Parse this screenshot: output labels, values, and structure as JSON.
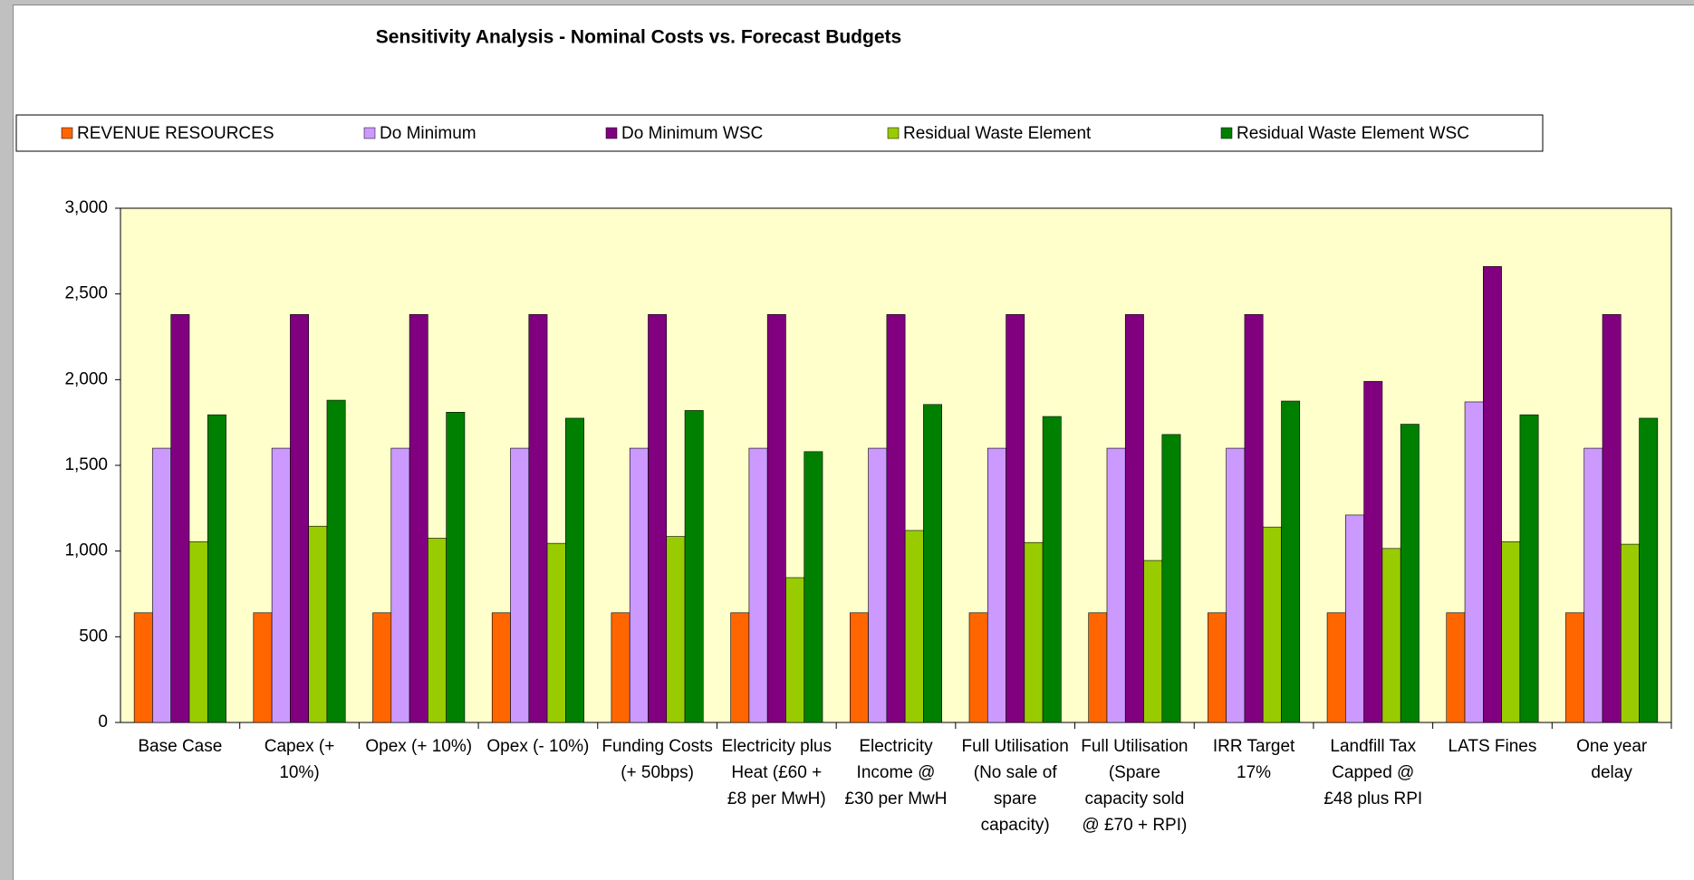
{
  "chart_data": {
    "type": "bar",
    "title": "Sensitivity Analysis - Nominal Costs vs. Forecast Budgets",
    "categories": [
      "Base Case",
      "Capex (+ 10%)",
      "Opex (+ 10%)",
      "Opex (- 10%)",
      "Funding Costs (+ 50bps)",
      "Electricity plus Heat (£60 + £8 per MwH)",
      "Electricity Income @ £30 per MwH",
      "Full Utilisation (No sale of spare capacity)",
      "Full Utilisation (Spare capacity sold @ £70 + RPI)",
      "IRR Target 17%",
      "Landfill Tax Capped @ £48 plus RPI",
      "LATS Fines",
      "One year delay"
    ],
    "series": [
      {
        "name": "REVENUE RESOURCES",
        "color": "#ff6600",
        "values": [
          640,
          640,
          640,
          640,
          640,
          640,
          640,
          640,
          640,
          640,
          640,
          640,
          640
        ]
      },
      {
        "name": "Do Minimum",
        "color": "#cc99ff",
        "values": [
          1600,
          1600,
          1600,
          1600,
          1600,
          1600,
          1600,
          1600,
          1600,
          1600,
          1210,
          1870,
          1600
        ]
      },
      {
        "name": "Do Minimum WSC",
        "color": "#800080",
        "values": [
          2380,
          2380,
          2380,
          2380,
          2380,
          2380,
          2380,
          2380,
          2380,
          2380,
          1990,
          2660,
          2380
        ]
      },
      {
        "name": "Residual Waste Element",
        "color": "#99cc00",
        "values": [
          1055,
          1145,
          1075,
          1045,
          1085,
          845,
          1120,
          1050,
          945,
          1140,
          1015,
          1055,
          1040
        ]
      },
      {
        "name": "Residual Waste Element WSC",
        "color": "#008000",
        "values": [
          1795,
          1880,
          1810,
          1775,
          1820,
          1580,
          1855,
          1785,
          1680,
          1875,
          1740,
          1795,
          1775
        ]
      }
    ],
    "ylim": [
      0,
      3000
    ],
    "yticks": [
      0,
      {
        "value": 500,
        "label": "500"
      },
      {
        "value": 1000,
        "label": "1,000"
      },
      {
        "value": 1500,
        "label": "1,500"
      },
      {
        "value": 2000,
        "label": "2,000"
      },
      {
        "value": 2500,
        "label": "2,500"
      },
      {
        "value": 3000,
        "label": "3,000"
      }
    ],
    "grid": false,
    "legend": "top",
    "plot_background": "#ffffcc"
  }
}
